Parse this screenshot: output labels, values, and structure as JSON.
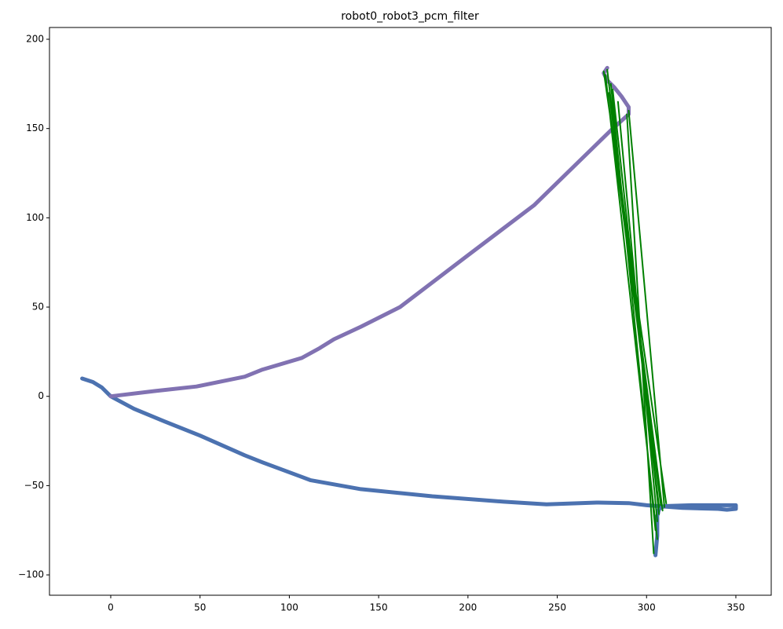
{
  "chart_data": {
    "type": "line",
    "title": "robot0_robot3_pcm_filter",
    "xlim": [
      -34.3,
      369.8
    ],
    "ylim": [
      -111.4,
      206.6
    ],
    "xticks": [
      0,
      50,
      100,
      150,
      200,
      250,
      300,
      350
    ],
    "yticks": [
      {
        "value": -100,
        "label": "−100"
      },
      {
        "value": -50,
        "label": "−50"
      },
      0,
      50,
      100,
      150,
      200
    ],
    "grid": false,
    "series": [
      {
        "color": "#4c72b0",
        "width": 5,
        "x": [
          -16,
          -10,
          -5,
          0,
          13,
          30,
          50,
          75,
          85,
          112,
          140,
          180,
          220,
          244,
          272,
          290,
          300,
          320,
          340,
          345,
          350,
          350,
          340,
          325,
          310,
          307,
          306,
          306,
          305
        ],
        "y": [
          10,
          8,
          5,
          0,
          -7,
          -14,
          -22,
          -33,
          -37,
          -47,
          -52,
          -56,
          -59,
          -60.5,
          -59.5,
          -59.8,
          -61,
          -62.5,
          -63,
          -63.5,
          -63,
          -61,
          -61,
          -61,
          -61.5,
          -63,
          -67,
          -78,
          -89
        ]
      },
      {
        "color": "#8172b2",
        "width": 5,
        "x": [
          0,
          25,
          48,
          75,
          85,
          107,
          117,
          125,
          140,
          162,
          200,
          237,
          280,
          290,
          290,
          286,
          282,
          278,
          276,
          278
        ],
        "y": [
          0,
          3,
          5.5,
          11,
          15,
          21.5,
          27,
          32,
          39,
          50,
          79,
          107,
          149,
          158,
          162,
          168,
          173,
          177,
          181,
          184
        ]
      },
      {
        "color": "#008000",
        "width": 2,
        "x": [
          278,
          307,
          null,
          277,
          306,
          null,
          290,
          310,
          null,
          280,
          305,
          null,
          277,
          308,
          null,
          289,
          304,
          null,
          279,
          309,
          null,
          284,
          306,
          null,
          276,
          311,
          null,
          281,
          307
        ],
        "y": [
          183,
          -62,
          null,
          180,
          -80,
          null,
          160,
          -62,
          null,
          175,
          -75,
          null,
          178,
          -61,
          null,
          158,
          -88,
          null,
          170,
          -64,
          null,
          165,
          -70,
          null,
          182,
          -60,
          null,
          172,
          -66
        ]
      }
    ]
  }
}
